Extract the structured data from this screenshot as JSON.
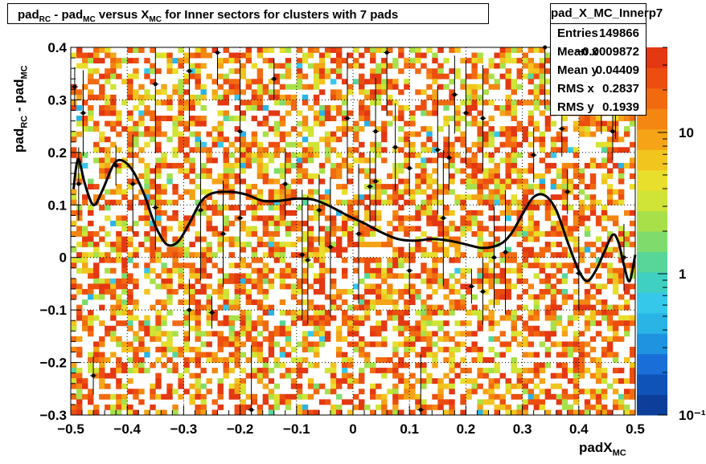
{
  "title": {
    "p1": "pad",
    "s1": "RC",
    "p2": " - pad",
    "s2": "MC",
    "p3": " versus X",
    "s3": "MC",
    "p4": " for Inner sectors for clusters with 7 pads"
  },
  "stats": {
    "name": "pad_X_MC_Innerp7",
    "rows": [
      {
        "label": "Entries",
        "value": "149866"
      },
      {
        "label": "Mean x",
        "value": "−0.0009872"
      },
      {
        "label": "Mean y",
        "value": "0.04409"
      },
      {
        "label": "RMS x",
        "value": "0.2837"
      },
      {
        "label": "RMS y",
        "value": "0.1939"
      }
    ]
  },
  "axes": {
    "ylabel_main": "pad",
    "ylabel_sub1": "RC",
    "ylabel_mid": " - pad",
    "ylabel_sub2": "MC",
    "xlabel_main": "padX",
    "xlabel_sub": "MC"
  },
  "chart_data": {
    "type": "heatmap",
    "xlim": [
      -0.5,
      0.5
    ],
    "ylim": [
      -0.3,
      0.4
    ],
    "xticks": [
      -0.5,
      -0.4,
      -0.3,
      -0.2,
      -0.1,
      0,
      0.1,
      0.2,
      0.3,
      0.4,
      0.5
    ],
    "xtick_labels": [
      "−0.5",
      "−0.4",
      "−0.3",
      "−0.2",
      "−0.1",
      "0",
      "0.1",
      "0.2",
      "0.3",
      "0.4",
      "0.5"
    ],
    "yticks": [
      -0.3,
      -0.2,
      -0.1,
      0,
      0.1,
      0.2,
      0.3,
      0.4
    ],
    "ytick_labels": [
      "−0.3",
      "−0.2",
      "−0.1",
      "0",
      "0.1",
      "0.2",
      "0.3",
      "0.4"
    ],
    "grid": true,
    "color_scale": "log",
    "z_range": [
      0.1,
      40
    ],
    "z_ticks": [
      10,
      1,
      0.1
    ],
    "z_tick_labels": [
      "10",
      "1",
      "10⁻¹"
    ],
    "palette": [
      "#0d3f9a",
      "#0f52b8",
      "#1a6ed8",
      "#1f93e0",
      "#2ab4e6",
      "#36c8ea",
      "#3fd0c2",
      "#58d69a",
      "#7fdc6c",
      "#a8e04a",
      "#cfe436",
      "#e8de2c",
      "#f2c41e",
      "#f4a416",
      "#f48612",
      "#f26a10",
      "#ec4e10",
      "#e33812"
    ],
    "profile_points": [
      {
        "x": -0.493,
        "y": 0.325
      },
      {
        "x": -0.486,
        "y": 0.14
      },
      {
        "x": -0.478,
        "y": 0.275
      },
      {
        "x": -0.46,
        "y": -0.225
      },
      {
        "x": -0.42,
        "y": 0.175
      },
      {
        "x": -0.39,
        "y": 0.14
      },
      {
        "x": -0.35,
        "y": 0.095
      },
      {
        "x": -0.35,
        "y": 0.33
      },
      {
        "x": -0.29,
        "y": 0.355
      },
      {
        "x": -0.29,
        "y": -0.1
      },
      {
        "x": -0.27,
        "y": 0.09
      },
      {
        "x": -0.25,
        "y": -0.105
      },
      {
        "x": -0.24,
        "y": 0.39
      },
      {
        "x": -0.23,
        "y": 0.045
      },
      {
        "x": -0.2,
        "y": 0.24
      },
      {
        "x": -0.2,
        "y": 0.075
      },
      {
        "x": -0.18,
        "y": -0.29
      },
      {
        "x": -0.14,
        "y": 0.34
      },
      {
        "x": -0.12,
        "y": 0.14
      },
      {
        "x": -0.09,
        "y": 0.005
      },
      {
        "x": -0.08,
        "y": -0.005
      },
      {
        "x": -0.06,
        "y": 0.09
      },
      {
        "x": -0.04,
        "y": 0.02
      },
      {
        "x": -0.01,
        "y": 0.265
      },
      {
        "x": 0.01,
        "y": 0.045
      },
      {
        "x": 0.03,
        "y": 0.135
      },
      {
        "x": 0.04,
        "y": 0.145
      },
      {
        "x": 0.04,
        "y": 0.24
      },
      {
        "x": 0.06,
        "y": 0.39
      },
      {
        "x": 0.075,
        "y": 0.21
      },
      {
        "x": 0.1,
        "y": -0.025
      },
      {
        "x": 0.1,
        "y": 0.17
      },
      {
        "x": 0.12,
        "y": -0.29
      },
      {
        "x": 0.15,
        "y": 0.205
      },
      {
        "x": 0.16,
        "y": 0.075
      },
      {
        "x": 0.17,
        "y": 0.19
      },
      {
        "x": 0.18,
        "y": 0.31
      },
      {
        "x": 0.2,
        "y": 0.275
      },
      {
        "x": 0.21,
        "y": -0.055
      },
      {
        "x": 0.23,
        "y": 0.265
      },
      {
        "x": 0.23,
        "y": -0.065
      },
      {
        "x": 0.25,
        "y": 0.0
      },
      {
        "x": 0.27,
        "y": 0.01
      },
      {
        "x": 0.32,
        "y": 0.195
      },
      {
        "x": 0.34,
        "y": 0.4
      },
      {
        "x": 0.37,
        "y": 0.245
      },
      {
        "x": 0.38,
        "y": 0.125
      },
      {
        "x": 0.4,
        "y": -0.03
      },
      {
        "x": 0.44,
        "y": 0.3
      },
      {
        "x": 0.46,
        "y": 0.24
      },
      {
        "x": 0.465,
        "y": 0.29
      },
      {
        "x": 0.48,
        "y": 0.0
      }
    ],
    "fit_curve": [
      [
        -0.495,
        0.13
      ],
      [
        -0.49,
        0.175
      ],
      [
        -0.485,
        0.185
      ],
      [
        -0.475,
        0.14
      ],
      [
        -0.46,
        0.1
      ],
      [
        -0.445,
        0.125
      ],
      [
        -0.425,
        0.175
      ],
      [
        -0.41,
        0.185
      ],
      [
        -0.39,
        0.165
      ],
      [
        -0.37,
        0.12
      ],
      [
        -0.35,
        0.06
      ],
      [
        -0.33,
        0.025
      ],
      [
        -0.31,
        0.03
      ],
      [
        -0.29,
        0.065
      ],
      [
        -0.27,
        0.105
      ],
      [
        -0.25,
        0.122
      ],
      [
        -0.22,
        0.125
      ],
      [
        -0.19,
        0.12
      ],
      [
        -0.16,
        0.108
      ],
      [
        -0.13,
        0.108
      ],
      [
        -0.1,
        0.112
      ],
      [
        -0.07,
        0.11
      ],
      [
        -0.04,
        0.097
      ],
      [
        -0.01,
        0.08
      ],
      [
        0.02,
        0.065
      ],
      [
        0.05,
        0.048
      ],
      [
        0.08,
        0.035
      ],
      [
        0.11,
        0.032
      ],
      [
        0.14,
        0.035
      ],
      [
        0.17,
        0.032
      ],
      [
        0.2,
        0.025
      ],
      [
        0.23,
        0.018
      ],
      [
        0.26,
        0.025
      ],
      [
        0.28,
        0.045
      ],
      [
        0.3,
        0.082
      ],
      [
        0.32,
        0.115
      ],
      [
        0.34,
        0.118
      ],
      [
        0.36,
        0.09
      ],
      [
        0.38,
        0.03
      ],
      [
        0.4,
        -0.025
      ],
      [
        0.415,
        -0.045
      ],
      [
        0.43,
        -0.025
      ],
      [
        0.445,
        0.01
      ],
      [
        0.46,
        0.043
      ],
      [
        0.47,
        0.03
      ],
      [
        0.48,
        -0.015
      ],
      [
        0.49,
        -0.045
      ],
      [
        0.5,
        0.005
      ]
    ]
  }
}
